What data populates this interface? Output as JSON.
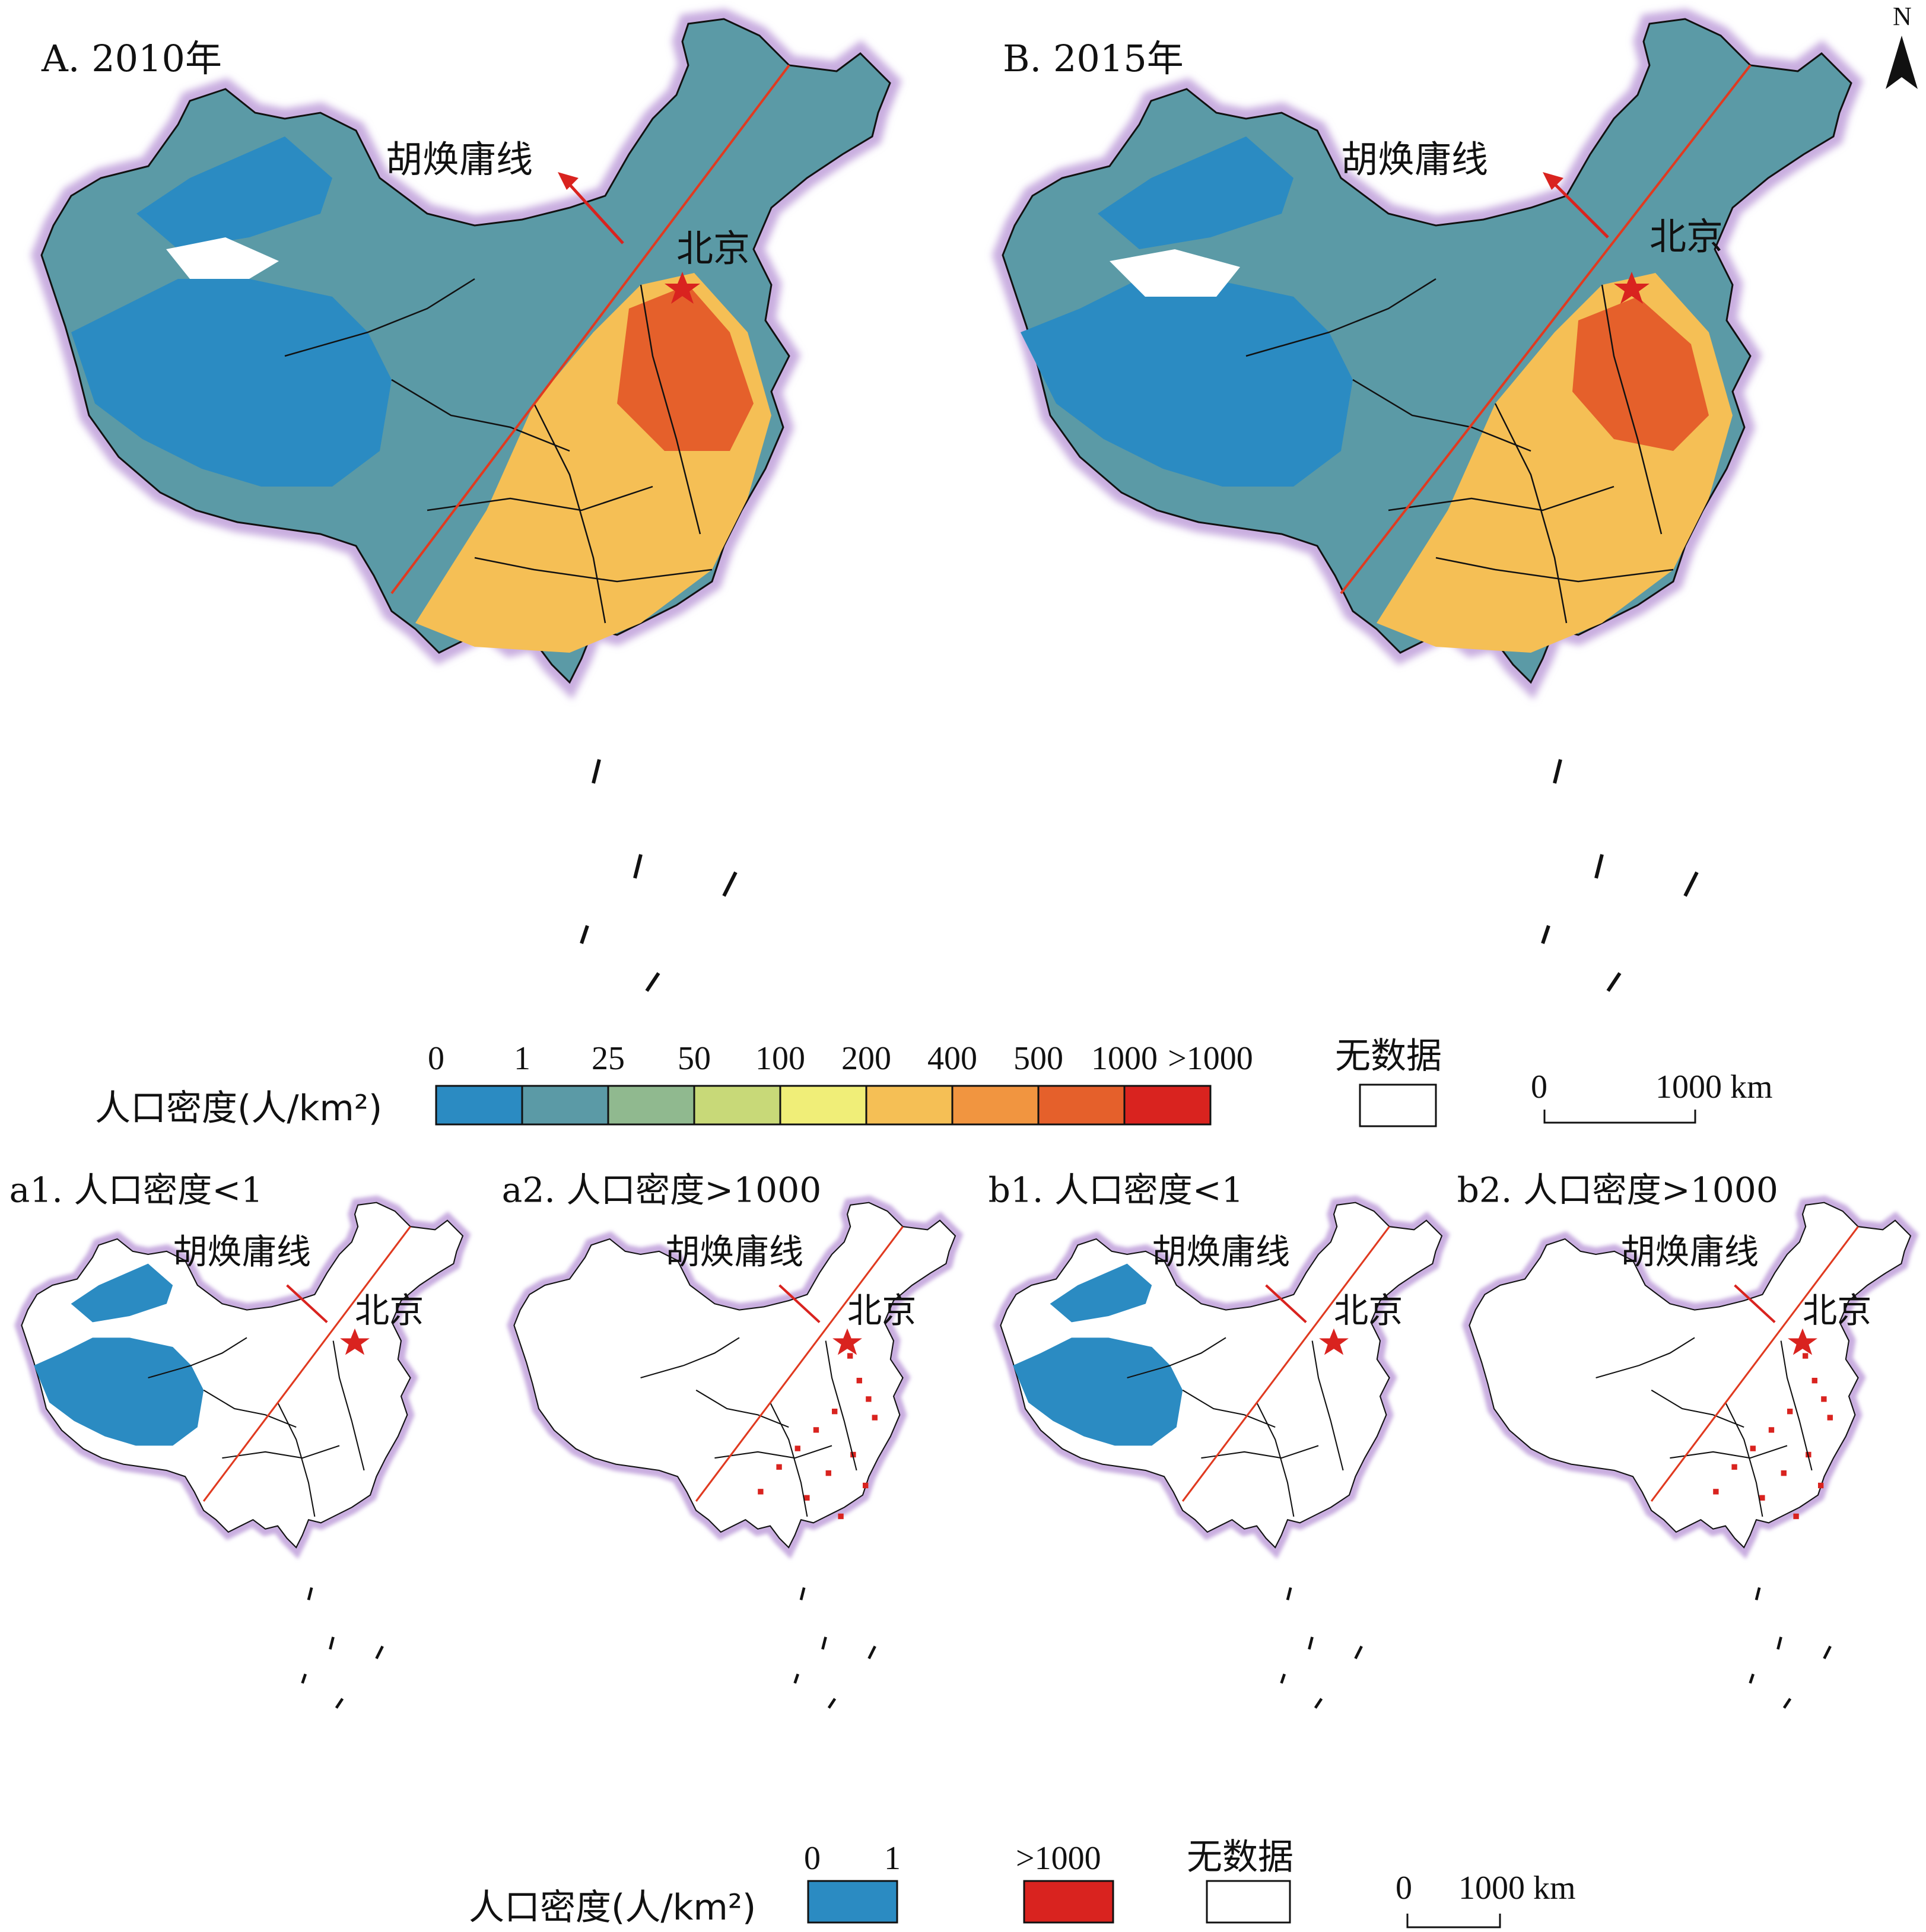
{
  "panels": [
    {
      "id": "A",
      "title": "A. 2010年",
      "line_label": "胡焕庸线",
      "city_label": "北京"
    },
    {
      "id": "B",
      "title": "B. 2015年",
      "line_label": "胡焕庸线",
      "city_label": "北京"
    },
    {
      "id": "a1",
      "title": "a1. 人口密度<1",
      "line_label": "胡焕庸线",
      "city_label": "北京"
    },
    {
      "id": "a2",
      "title": "a2. 人口密度>1000",
      "line_label": "胡焕庸线",
      "city_label": "北京"
    },
    {
      "id": "b1",
      "title": "b1. 人口密度<1",
      "line_label": "胡焕庸线",
      "city_label": "北京"
    },
    {
      "id": "b2",
      "title": "b2. 人口密度>1000",
      "line_label": "胡焕庸线",
      "city_label": "北京"
    }
  ],
  "north_arrow": {
    "label": "N"
  },
  "legend_main": {
    "title": "人口密度(人/km²)",
    "ticks": [
      "0",
      "1",
      "25",
      "50",
      "100",
      "200",
      "400",
      "500",
      "1000",
      ">1000"
    ],
    "colors": [
      "#2b8bc2",
      "#5b9aa6",
      "#90b98f",
      "#c8d978",
      "#f0ee78",
      "#f5bf55",
      "#f19540",
      "#e5602b",
      "#d9231f"
    ],
    "nodata_label": "无数据",
    "scale_label_start": "0",
    "scale_label_end": "1000 km"
  },
  "legend_sub": {
    "title": "人口密度(人/km²)",
    "low_ticks": [
      "0",
      "1"
    ],
    "low_color": "#2b8bc2",
    "high_label": ">1000",
    "high_color": "#d9231f",
    "nodata_label": "无数据",
    "scale_label_start": "0",
    "scale_label_end": "1000 km"
  }
}
